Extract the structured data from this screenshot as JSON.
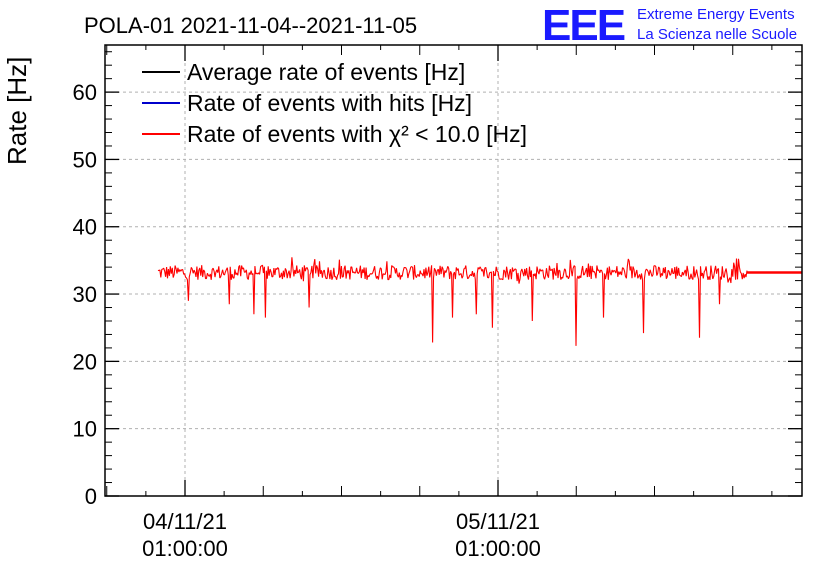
{
  "chart_data": {
    "type": "line",
    "title": "POLA-01 2021-11-04--2021-11-05",
    "ylabel": "Rate [Hz]",
    "ylim": [
      0,
      67
    ],
    "y_ticks": [
      0,
      10,
      20,
      30,
      40,
      50,
      60
    ],
    "x_tick_labels": [
      {
        "date": "04/11/21",
        "time": "01:00:00"
      },
      {
        "date": "05/11/21",
        "time": "01:00:00"
      }
    ],
    "grid": true,
    "legend_placement": "top-left",
    "series": [
      {
        "name": "Average rate of events [Hz]",
        "color": "#000000",
        "mean": 33.2
      },
      {
        "name": "Rate of events with hits [Hz]",
        "color": "#0000cc",
        "mean": 33.2
      },
      {
        "name": "Rate of events with χ² < 10.0 [Hz]",
        "color": "#ff0000",
        "mean": 33.2,
        "noise_range": [
          31.5,
          35.5
        ],
        "dips": [
          29,
          28.5,
          27,
          26.5,
          28,
          22.8,
          26.5,
          27,
          25,
          26,
          22.3,
          26.5,
          24.2,
          23.5,
          28.5
        ]
      }
    ],
    "logo": {
      "big": "EEE",
      "line1": "Extreme Energy Events",
      "line2": "La Scienza nelle Scuole",
      "color": "#1a1aff"
    }
  }
}
